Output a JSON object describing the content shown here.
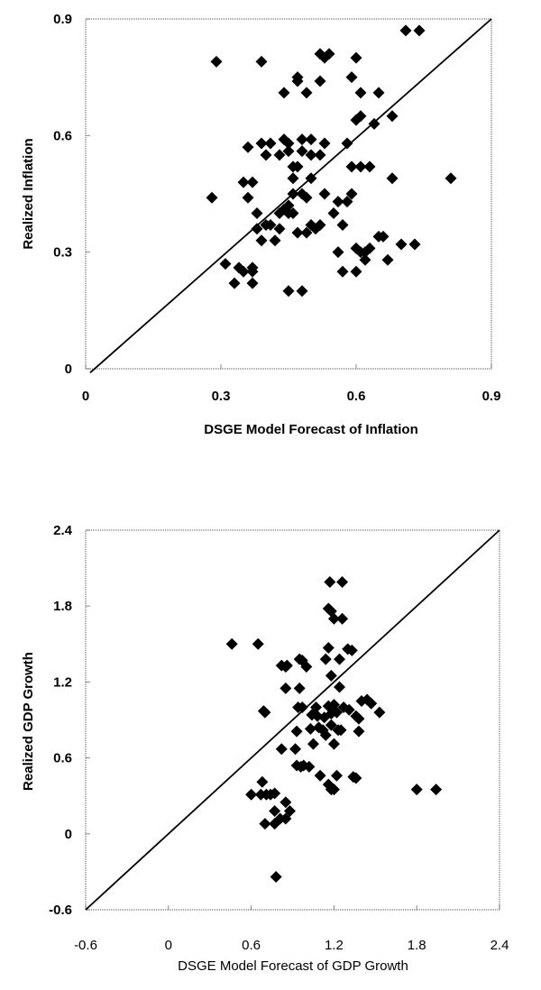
{
  "chart_data": [
    {
      "type": "scatter",
      "title": "",
      "xlabel": "DSGE Model Forecast of Inflation",
      "ylabel": "Realized Inflation",
      "xlim": [
        0,
        0.9
      ],
      "ylim": [
        0,
        0.9
      ],
      "xticks": [
        0,
        0.3,
        0.6,
        0.9
      ],
      "yticks": [
        0,
        0.3,
        0.6,
        0.9
      ],
      "xtick_labels": [
        "0",
        "0.3",
        "0.6",
        "0.9"
      ],
      "ytick_labels": [
        "0",
        "0.3",
        "0.6",
        "0.9"
      ],
      "grid": false,
      "legend": "none",
      "marker": "diamond",
      "reference_line": {
        "label": "45-degree line",
        "from": [
          0.01,
          -0.01
        ],
        "to": [
          0.9,
          0.9
        ]
      },
      "series": [
        {
          "name": "Inflation",
          "points": [
            [
              0.29,
              0.79
            ],
            [
              0.39,
              0.79
            ],
            [
              0.52,
              0.81
            ],
            [
              0.53,
              0.8
            ],
            [
              0.54,
              0.81
            ],
            [
              0.6,
              0.8
            ],
            [
              0.71,
              0.87
            ],
            [
              0.74,
              0.87
            ],
            [
              0.47,
              0.74
            ],
            [
              0.47,
              0.75
            ],
            [
              0.52,
              0.74
            ],
            [
              0.59,
              0.75
            ],
            [
              0.44,
              0.71
            ],
            [
              0.49,
              0.71
            ],
            [
              0.61,
              0.71
            ],
            [
              0.65,
              0.71
            ],
            [
              0.6,
              0.64
            ],
            [
              0.61,
              0.65
            ],
            [
              0.64,
              0.63
            ],
            [
              0.68,
              0.65
            ],
            [
              0.36,
              0.57
            ],
            [
              0.39,
              0.58
            ],
            [
              0.41,
              0.58
            ],
            [
              0.44,
              0.59
            ],
            [
              0.45,
              0.58
            ],
            [
              0.48,
              0.59
            ],
            [
              0.5,
              0.59
            ],
            [
              0.4,
              0.55
            ],
            [
              0.43,
              0.55
            ],
            [
              0.45,
              0.56
            ],
            [
              0.48,
              0.56
            ],
            [
              0.5,
              0.55
            ],
            [
              0.52,
              0.55
            ],
            [
              0.53,
              0.58
            ],
            [
              0.58,
              0.58
            ],
            [
              0.46,
              0.52
            ],
            [
              0.47,
              0.52
            ],
            [
              0.59,
              0.52
            ],
            [
              0.61,
              0.52
            ],
            [
              0.63,
              0.52
            ],
            [
              0.35,
              0.48
            ],
            [
              0.37,
              0.48
            ],
            [
              0.46,
              0.49
            ],
            [
              0.5,
              0.49
            ],
            [
              0.68,
              0.49
            ],
            [
              0.81,
              0.49
            ],
            [
              0.28,
              0.44
            ],
            [
              0.36,
              0.44
            ],
            [
              0.46,
              0.45
            ],
            [
              0.48,
              0.45
            ],
            [
              0.49,
              0.44
            ],
            [
              0.53,
              0.45
            ],
            [
              0.56,
              0.43
            ],
            [
              0.58,
              0.43
            ],
            [
              0.59,
              0.45
            ],
            [
              0.38,
              0.4
            ],
            [
              0.43,
              0.4
            ],
            [
              0.44,
              0.41
            ],
            [
              0.45,
              0.42
            ],
            [
              0.45,
              0.4
            ],
            [
              0.46,
              0.4
            ],
            [
              0.55,
              0.4
            ],
            [
              0.38,
              0.36
            ],
            [
              0.4,
              0.37
            ],
            [
              0.41,
              0.37
            ],
            [
              0.43,
              0.36
            ],
            [
              0.47,
              0.35
            ],
            [
              0.49,
              0.35
            ],
            [
              0.5,
              0.37
            ],
            [
              0.51,
              0.36
            ],
            [
              0.52,
              0.37
            ],
            [
              0.57,
              0.37
            ],
            [
              0.39,
              0.33
            ],
            [
              0.42,
              0.33
            ],
            [
              0.65,
              0.34
            ],
            [
              0.66,
              0.34
            ],
            [
              0.56,
              0.3
            ],
            [
              0.6,
              0.31
            ],
            [
              0.61,
              0.3
            ],
            [
              0.62,
              0.3
            ],
            [
              0.63,
              0.31
            ],
            [
              0.7,
              0.32
            ],
            [
              0.73,
              0.32
            ],
            [
              0.31,
              0.27
            ],
            [
              0.34,
              0.26
            ],
            [
              0.35,
              0.25
            ],
            [
              0.37,
              0.26
            ],
            [
              0.37,
              0.25
            ],
            [
              0.57,
              0.25
            ],
            [
              0.6,
              0.25
            ],
            [
              0.62,
              0.28
            ],
            [
              0.67,
              0.28
            ],
            [
              0.33,
              0.22
            ],
            [
              0.37,
              0.22
            ],
            [
              0.45,
              0.2
            ],
            [
              0.48,
              0.2
            ]
          ]
        }
      ]
    },
    {
      "type": "scatter",
      "title": "",
      "xlabel": "DSGE Model Forecast of GDP Growth",
      "ylabel": "Realized GDP Growth",
      "xlim": [
        -0.6,
        2.4
      ],
      "ylim": [
        -0.6,
        2.4
      ],
      "xticks": [
        -0.6,
        0,
        0.6,
        1.2,
        1.8,
        2.4
      ],
      "yticks": [
        -0.6,
        0,
        0.6,
        1.2,
        1.8,
        2.4
      ],
      "xtick_labels": [
        "-0.6",
        "0",
        "0.6",
        "1.2",
        "1.8",
        "2.4"
      ],
      "ytick_labels": [
        "-0.6",
        "0",
        "0.6",
        "1.2",
        "1.8",
        "2.4"
      ],
      "grid": false,
      "legend": "none",
      "marker": "diamond",
      "reference_line": {
        "label": "45-degree line",
        "from": [
          -0.6,
          -0.6
        ],
        "to": [
          2.4,
          2.4
        ]
      },
      "series": [
        {
          "name": "GDP Growth",
          "points": [
            [
              1.17,
              1.99
            ],
            [
              1.26,
              1.99
            ],
            [
              1.16,
              1.78
            ],
            [
              1.18,
              1.76
            ],
            [
              1.2,
              1.7
            ],
            [
              1.26,
              1.7
            ],
            [
              0.46,
              1.5
            ],
            [
              0.65,
              1.5
            ],
            [
              1.16,
              1.47
            ],
            [
              1.3,
              1.46
            ],
            [
              1.33,
              1.45
            ],
            [
              0.82,
              1.33
            ],
            [
              0.85,
              1.32
            ],
            [
              0.86,
              1.33
            ],
            [
              0.95,
              1.38
            ],
            [
              0.97,
              1.37
            ],
            [
              1.0,
              1.32
            ],
            [
              1.14,
              1.38
            ],
            [
              1.24,
              1.38
            ],
            [
              1.18,
              1.25
            ],
            [
              0.85,
              1.15
            ],
            [
              0.95,
              1.15
            ],
            [
              1.24,
              1.16
            ],
            [
              0.69,
              0.97
            ],
            [
              0.7,
              0.96
            ],
            [
              0.94,
              1.0
            ],
            [
              0.97,
              1.0
            ],
            [
              1.07,
              1.0
            ],
            [
              1.16,
              1.01
            ],
            [
              1.2,
              1.02
            ],
            [
              1.27,
              1.0
            ],
            [
              1.31,
              0.98
            ],
            [
              1.4,
              1.05
            ],
            [
              1.44,
              1.06
            ],
            [
              1.47,
              1.03
            ],
            [
              1.53,
              0.96
            ],
            [
              1.04,
              0.94
            ],
            [
              1.08,
              0.93
            ],
            [
              1.13,
              0.92
            ],
            [
              1.18,
              0.95
            ],
            [
              1.22,
              0.96
            ],
            [
              1.36,
              0.93
            ],
            [
              1.38,
              0.91
            ],
            [
              0.93,
              0.81
            ],
            [
              1.03,
              0.83
            ],
            [
              1.09,
              0.84
            ],
            [
              1.12,
              0.82
            ],
            [
              1.14,
              0.78
            ],
            [
              1.18,
              0.86
            ],
            [
              1.23,
              0.82
            ],
            [
              1.25,
              0.82
            ],
            [
              1.38,
              0.81
            ],
            [
              0.82,
              0.67
            ],
            [
              0.92,
              0.67
            ],
            [
              1.05,
              0.71
            ],
            [
              1.2,
              0.71
            ],
            [
              0.93,
              0.54
            ],
            [
              0.96,
              0.53
            ],
            [
              0.98,
              0.54
            ],
            [
              1.02,
              0.53
            ],
            [
              1.1,
              0.46
            ],
            [
              1.22,
              0.46
            ],
            [
              1.34,
              0.45
            ],
            [
              1.36,
              0.44
            ],
            [
              0.68,
              0.41
            ],
            [
              1.16,
              0.39
            ],
            [
              1.18,
              0.35
            ],
            [
              1.2,
              0.35
            ],
            [
              0.6,
              0.31
            ],
            [
              0.67,
              0.31
            ],
            [
              0.71,
              0.31
            ],
            [
              0.74,
              0.31
            ],
            [
              0.77,
              0.32
            ],
            [
              1.8,
              0.35
            ],
            [
              1.94,
              0.35
            ],
            [
              0.85,
              0.25
            ],
            [
              0.77,
              0.18
            ],
            [
              0.88,
              0.18
            ],
            [
              0.81,
              0.12
            ],
            [
              0.85,
              0.12
            ],
            [
              0.7,
              0.08
            ],
            [
              0.77,
              0.08
            ],
            [
              0.78,
              -0.34
            ]
          ]
        }
      ]
    }
  ]
}
